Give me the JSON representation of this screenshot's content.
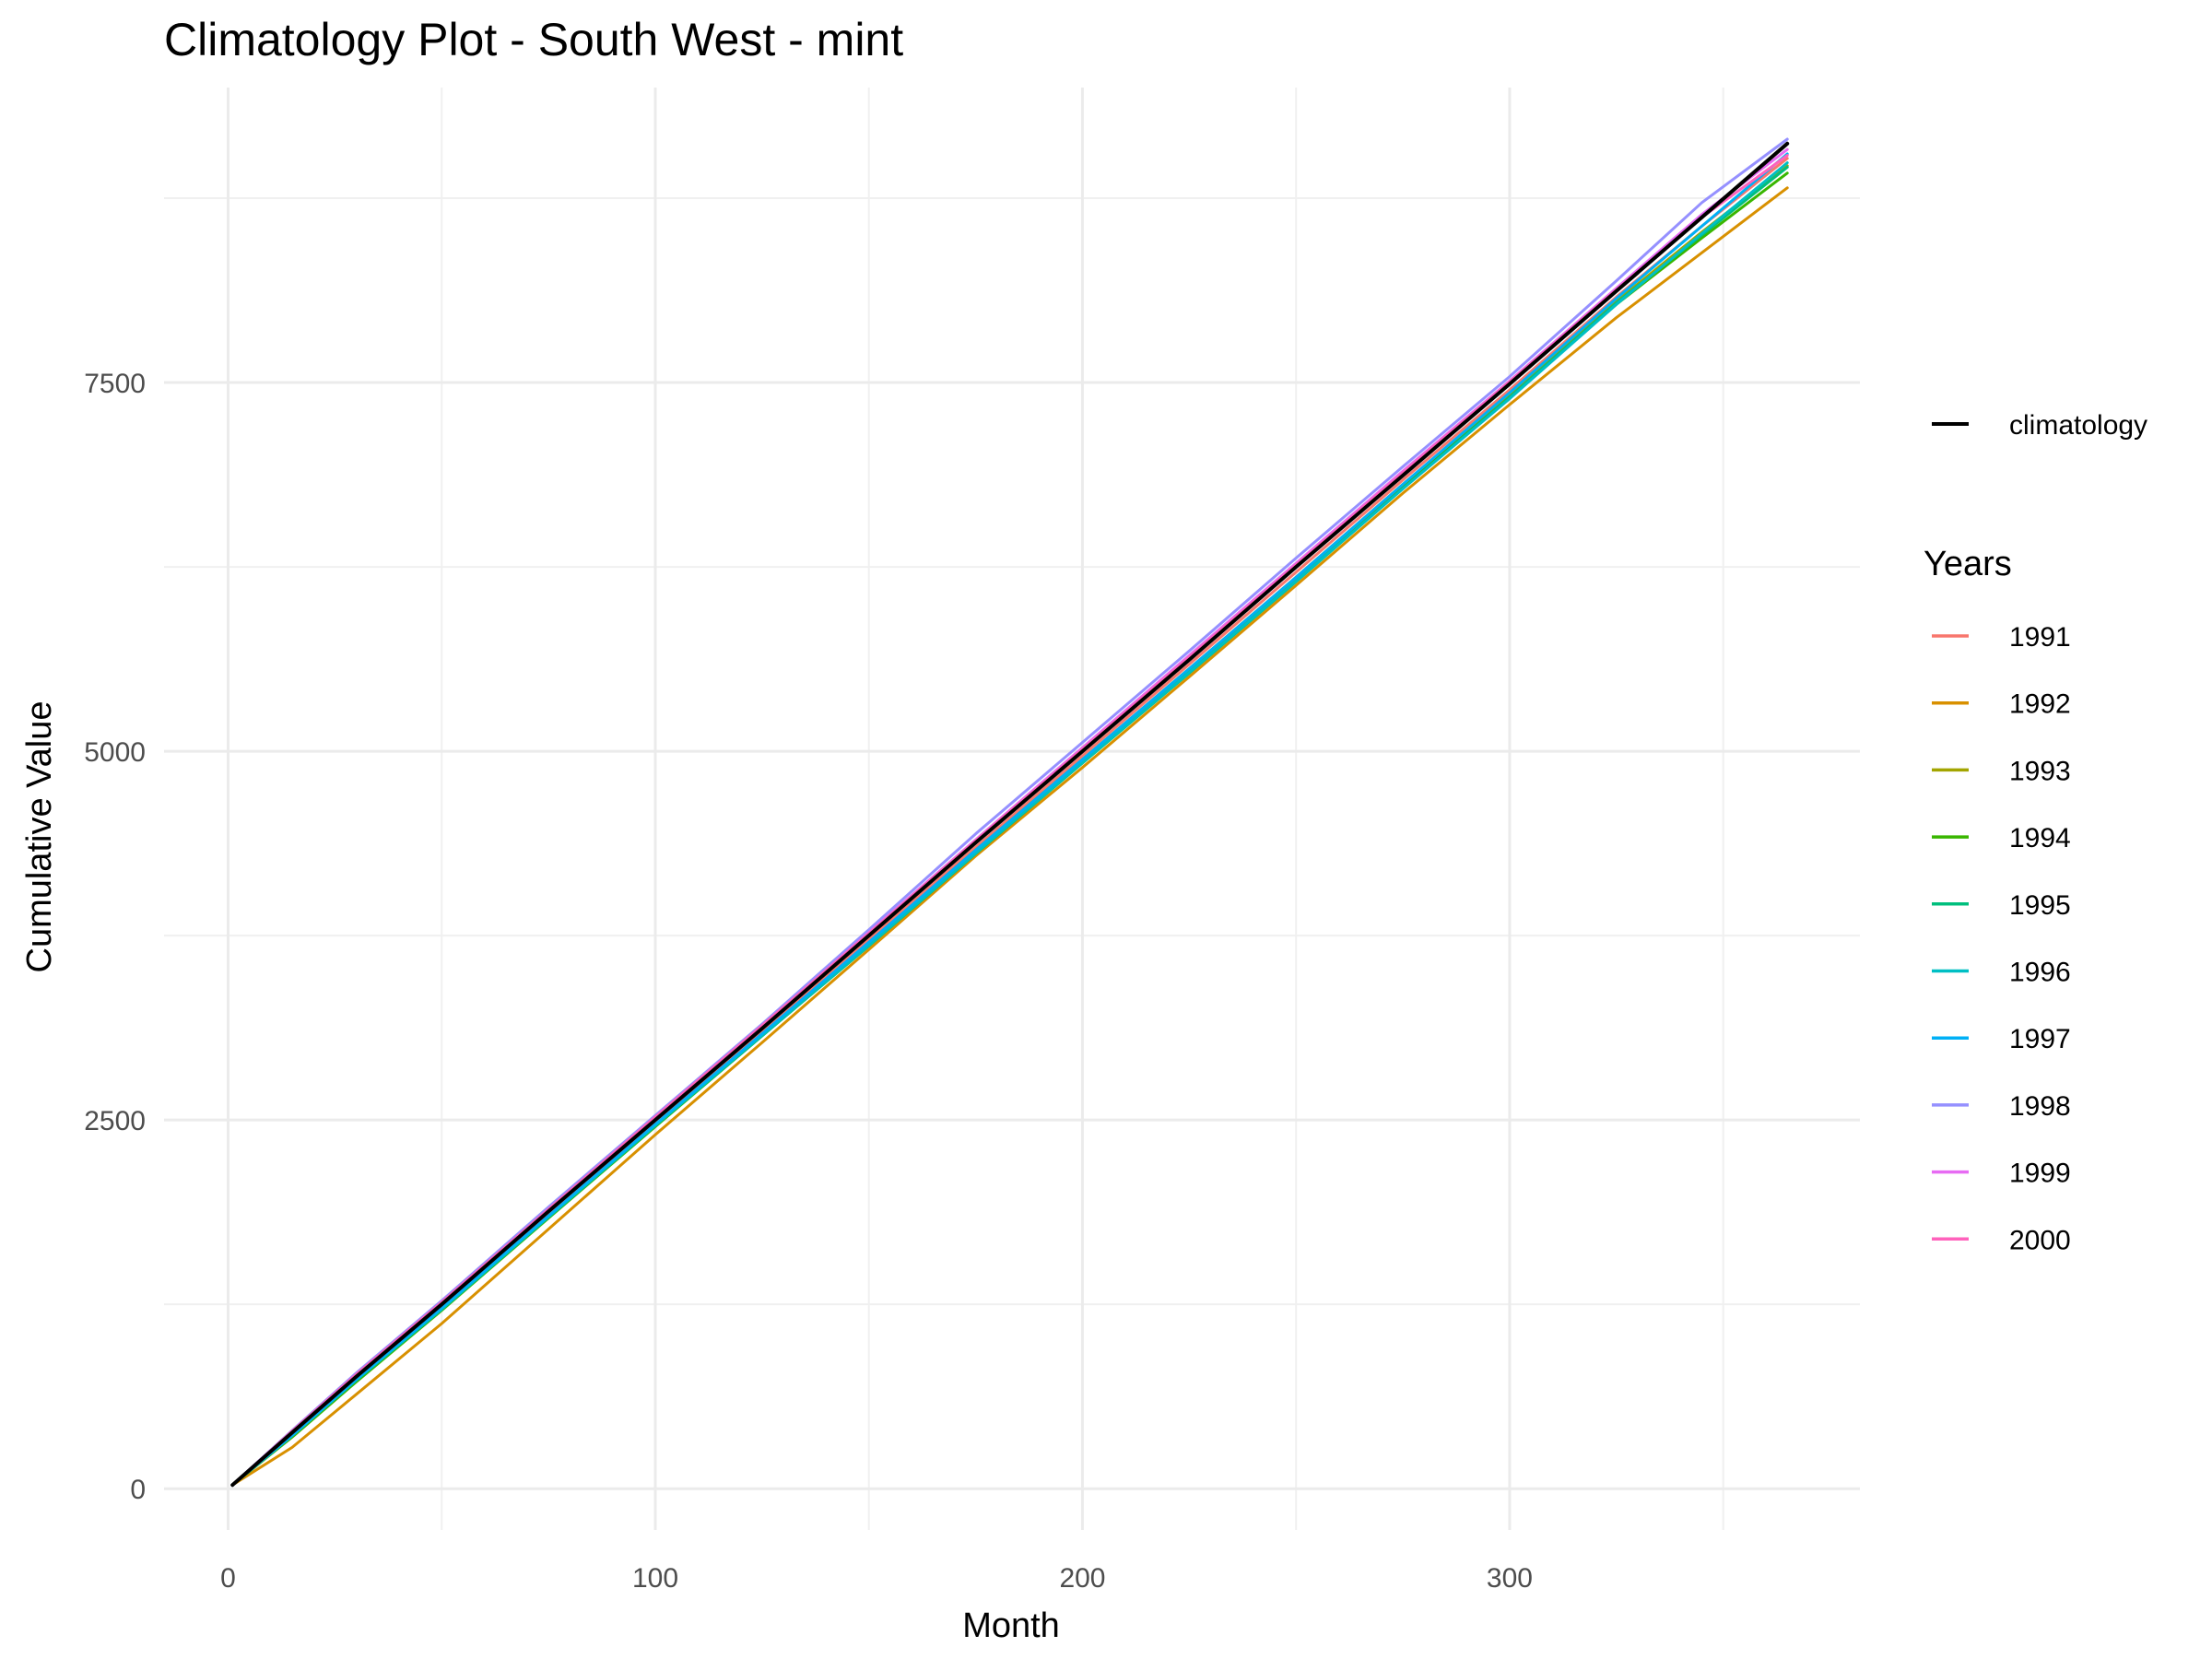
{
  "chart_data": {
    "type": "line",
    "title": "Climatology Plot - South West - mint",
    "xlabel": "Month",
    "ylabel": "Cumulative Value",
    "xlim": [
      -15,
      382
    ],
    "ylim": [
      -280,
      9500
    ],
    "x_ticks": [
      0,
      100,
      200,
      300
    ],
    "x_tick_labels": [
      "0",
      "100",
      "200",
      "300"
    ],
    "x_minor_ticks": [
      50,
      150,
      250,
      350
    ],
    "y_ticks": [
      0,
      2500,
      5000,
      7500
    ],
    "y_tick_labels": [
      "0",
      "2500",
      "5000",
      "7500"
    ],
    "y_minor_ticks": [
      1250,
      3750,
      6250,
      8750
    ],
    "grid": true,
    "legend_position": "right",
    "reference_legend": {
      "label": "climatology",
      "color": "#000000"
    },
    "legend_title": "Years",
    "x": [
      1,
      15,
      30,
      50,
      75,
      100,
      125,
      150,
      175,
      200,
      225,
      250,
      275,
      300,
      325,
      345,
      365
    ],
    "climatology": {
      "name": "climatology",
      "color": "#000000",
      "values": [
        25,
        380,
        760,
        1250,
        1880,
        2500,
        3120,
        3750,
        4380,
        5000,
        5620,
        6250,
        6870,
        7490,
        8120,
        8620,
        9120
      ]
    },
    "series": [
      {
        "name": "1991",
        "color": "#F8766D",
        "values": [
          25,
          375,
          755,
          1240,
          1865,
          2480,
          3100,
          3725,
          4350,
          4970,
          5590,
          6215,
          6840,
          7450,
          8080,
          8560,
          9020
        ]
      },
      {
        "name": "1992",
        "color": "#D89000",
        "values": [
          25,
          280,
          640,
          1120,
          1760,
          2400,
          3025,
          3655,
          4290,
          4890,
          5505,
          6125,
          6750,
          7350,
          7940,
          8380,
          8820
        ]
      },
      {
        "name": "1993",
        "color": "#A3A500",
        "values": [
          25,
          355,
          730,
          1210,
          1840,
          2465,
          3080,
          3700,
          4330,
          4945,
          5560,
          6180,
          6810,
          7420,
          8050,
          8520,
          8970
        ]
      },
      {
        "name": "1994",
        "color": "#39B600",
        "values": [
          25,
          350,
          725,
          1210,
          1835,
          2455,
          3070,
          3690,
          4315,
          4930,
          5540,
          6160,
          6790,
          7400,
          8030,
          8480,
          8920
        ]
      },
      {
        "name": "1995",
        "color": "#00BF7D",
        "values": [
          25,
          360,
          735,
          1215,
          1840,
          2460,
          3070,
          3680,
          4305,
          4920,
          5530,
          6150,
          6780,
          7400,
          8040,
          8500,
          8960
        ]
      },
      {
        "name": "1996",
        "color": "#00BFC4",
        "values": [
          25,
          365,
          740,
          1220,
          1845,
          2465,
          3075,
          3685,
          4310,
          4925,
          5535,
          6155,
          6780,
          7390,
          8030,
          8510,
          8990
        ]
      },
      {
        "name": "1997",
        "color": "#00B0F6",
        "values": [
          25,
          360,
          740,
          1225,
          1850,
          2470,
          3085,
          3705,
          4330,
          4945,
          5560,
          6180,
          6810,
          7430,
          8070,
          8560,
          9050
        ]
      },
      {
        "name": "1998",
        "color": "#9590FF",
        "values": [
          25,
          395,
          785,
          1275,
          1910,
          2530,
          3150,
          3790,
          4440,
          5060,
          5680,
          6310,
          6930,
          7540,
          8190,
          8720,
          9150
        ]
      },
      {
        "name": "1999",
        "color": "#E76BF3",
        "values": [
          25,
          385,
          770,
          1260,
          1890,
          2515,
          3135,
          3770,
          4400,
          5025,
          5650,
          6275,
          6900,
          7510,
          8140,
          8640,
          9080
        ]
      },
      {
        "name": "2000",
        "color": "#FF62BC",
        "values": [
          25,
          390,
          775,
          1265,
          1895,
          2520,
          3140,
          3765,
          4395,
          5015,
          5640,
          6265,
          6890,
          7505,
          8130,
          8620,
          9040
        ]
      }
    ]
  }
}
